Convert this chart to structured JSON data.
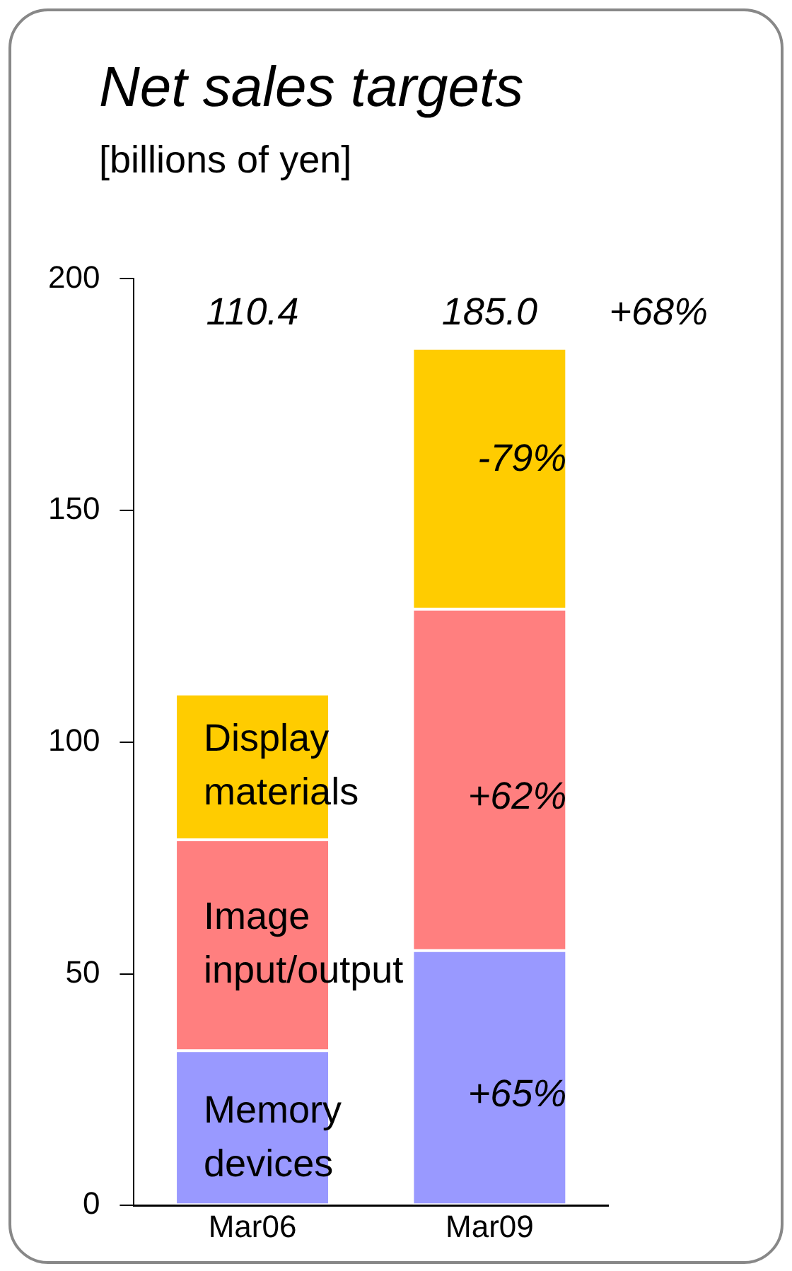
{
  "chart_data": {
    "type": "bar",
    "title": "Net sales targets",
    "subtitle": "[billions of yen]",
    "categories": [
      "Mar06",
      "Mar09"
    ],
    "stacked": true,
    "series": [
      {
        "name": "Memory devices",
        "color": "#9999ff",
        "values": [
          33.4,
          55.0
        ]
      },
      {
        "name": "Image input/output",
        "color": "#ff7f7f",
        "values": [
          45.5,
          73.7
        ]
      },
      {
        "name": "Display materials",
        "color": "#ffcc00",
        "values": [
          31.5,
          56.3
        ]
      }
    ],
    "annotations": [
      "110.4",
      "185.0",
      "+68%",
      "-79%",
      "+62%",
      "+65%"
    ],
    "ylim": [
      0,
      200
    ],
    "yticks": [
      0,
      50,
      100,
      150,
      200
    ],
    "grid": false,
    "legend": false
  }
}
